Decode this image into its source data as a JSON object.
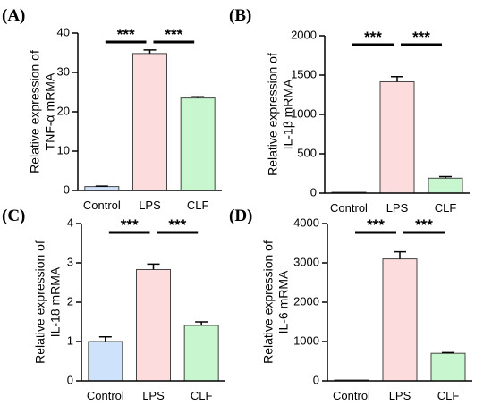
{
  "colors": {
    "Control": "#cfe2fb",
    "LPS": "#fcdcdc",
    "CLF": "#c8f7cf"
  },
  "chart_data": [
    {
      "type": "bar",
      "panel": "(A)",
      "categories": [
        "Control",
        "LPS",
        "CLF"
      ],
      "values": [
        1.0,
        34.8,
        23.5
      ],
      "errors": [
        0.1,
        0.9,
        0.3
      ],
      "ylabel_lines": [
        "Relative expression of",
        "TNF-α mRMA"
      ],
      "ylim": [
        0,
        40
      ],
      "yticks": [
        0,
        10,
        20,
        30,
        40
      ],
      "significance": [
        {
          "from": 0,
          "to": 1,
          "label": "***"
        },
        {
          "from": 1,
          "to": 2,
          "label": "***"
        }
      ]
    },
    {
      "type": "bar",
      "panel": "(B)",
      "categories": [
        "Control",
        "LPS",
        "CLF"
      ],
      "values": [
        1,
        1415,
        190
      ],
      "errors": [
        0,
        65,
        20
      ],
      "ylabel_lines": [
        "Relative expression of",
        "IL-1β mRMA"
      ],
      "ylim": [
        0,
        2000
      ],
      "yticks": [
        0,
        500,
        1000,
        1500,
        2000
      ],
      "significance": [
        {
          "from": 0,
          "to": 1,
          "label": "***"
        },
        {
          "from": 1,
          "to": 2,
          "label": "***"
        }
      ]
    },
    {
      "type": "bar",
      "panel": "(C)",
      "categories": [
        "Control",
        "LPS",
        "CLF"
      ],
      "values": [
        1.0,
        2.83,
        1.41
      ],
      "errors": [
        0.12,
        0.14,
        0.09
      ],
      "ylabel_lines": [
        "Relative expression of",
        "IL-18 mRMA"
      ],
      "ylim": [
        0,
        4
      ],
      "yticks": [
        0,
        1,
        2,
        3,
        4
      ],
      "significance": [
        {
          "from": 0,
          "to": 1,
          "label": "***"
        },
        {
          "from": 1,
          "to": 2,
          "label": "***"
        }
      ]
    },
    {
      "type": "bar",
      "panel": "(D)",
      "categories": [
        "Control",
        "LPS",
        "CLF"
      ],
      "values": [
        1,
        3100,
        700
      ],
      "errors": [
        0,
        180,
        20
      ],
      "ylabel_lines": [
        "Relative expression of",
        "IL-6 mRMA"
      ],
      "ylim": [
        0,
        4000
      ],
      "yticks": [
        0,
        1000,
        2000,
        3000,
        4000
      ],
      "significance": [
        {
          "from": 0,
          "to": 1,
          "label": "***"
        },
        {
          "from": 1,
          "to": 2,
          "label": "***"
        }
      ]
    }
  ]
}
